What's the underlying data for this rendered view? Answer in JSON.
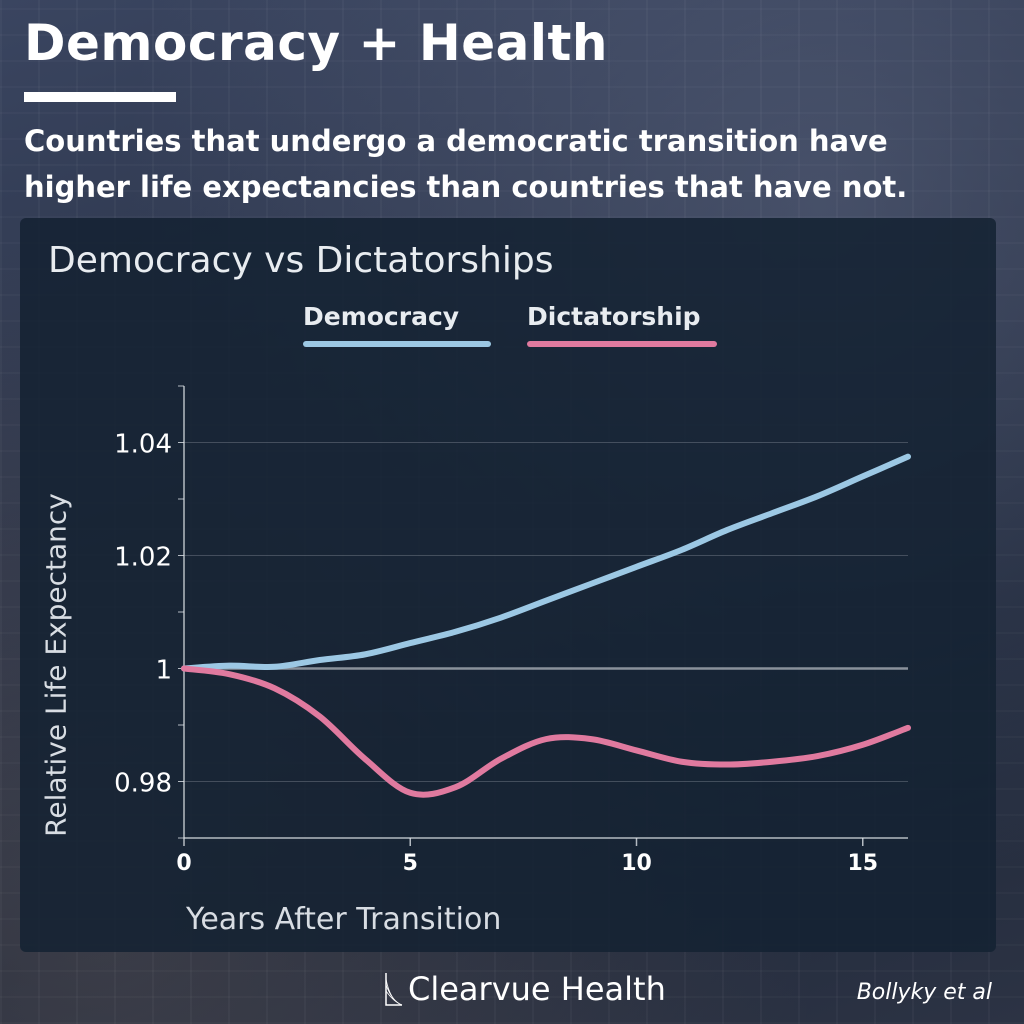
{
  "header": {
    "title": "Democracy + Health",
    "subtitle": "Countries that undergo a democratic transition have higher life expectancies than countries that have not."
  },
  "chart_data": {
    "type": "line",
    "title": "Democracy vs Dictatorships",
    "xlabel": "Years After Transition",
    "ylabel": "Relative Life Expectancy",
    "xlim": [
      0,
      16
    ],
    "ylim": [
      0.97,
      1.05
    ],
    "x_ticks": [
      0,
      5,
      10,
      15
    ],
    "y_ticks": [
      0.98,
      1.0,
      1.02,
      1.04
    ],
    "y_tick_labels": [
      "0.98",
      "1",
      "1.02",
      "1.04"
    ],
    "grid": true,
    "legend": "top",
    "series": [
      {
        "name": "Democracy",
        "color": "#9cc8e4",
        "x": [
          0,
          1,
          2,
          3,
          4,
          5,
          6,
          7,
          8,
          9,
          10,
          11,
          12,
          13,
          14,
          15,
          16
        ],
        "values": [
          1.0,
          1.0005,
          1.0003,
          1.0015,
          1.0025,
          1.0045,
          1.0065,
          1.009,
          1.012,
          1.015,
          1.018,
          1.021,
          1.0245,
          1.0275,
          1.0305,
          1.034,
          1.0375
        ]
      },
      {
        "name": "Dictatorship",
        "color": "#e07a9f",
        "x": [
          0,
          1,
          2,
          3,
          4,
          5,
          6,
          7,
          8,
          9,
          10,
          11,
          12,
          13,
          14,
          15,
          16
        ],
        "values": [
          1.0,
          0.999,
          0.9965,
          0.9915,
          0.984,
          0.978,
          0.979,
          0.984,
          0.9875,
          0.9875,
          0.9855,
          0.9835,
          0.983,
          0.9835,
          0.9845,
          0.9865,
          0.9895
        ]
      }
    ]
  },
  "footer": {
    "brand": "Clearvue Health",
    "source": "Bollyky et al"
  }
}
